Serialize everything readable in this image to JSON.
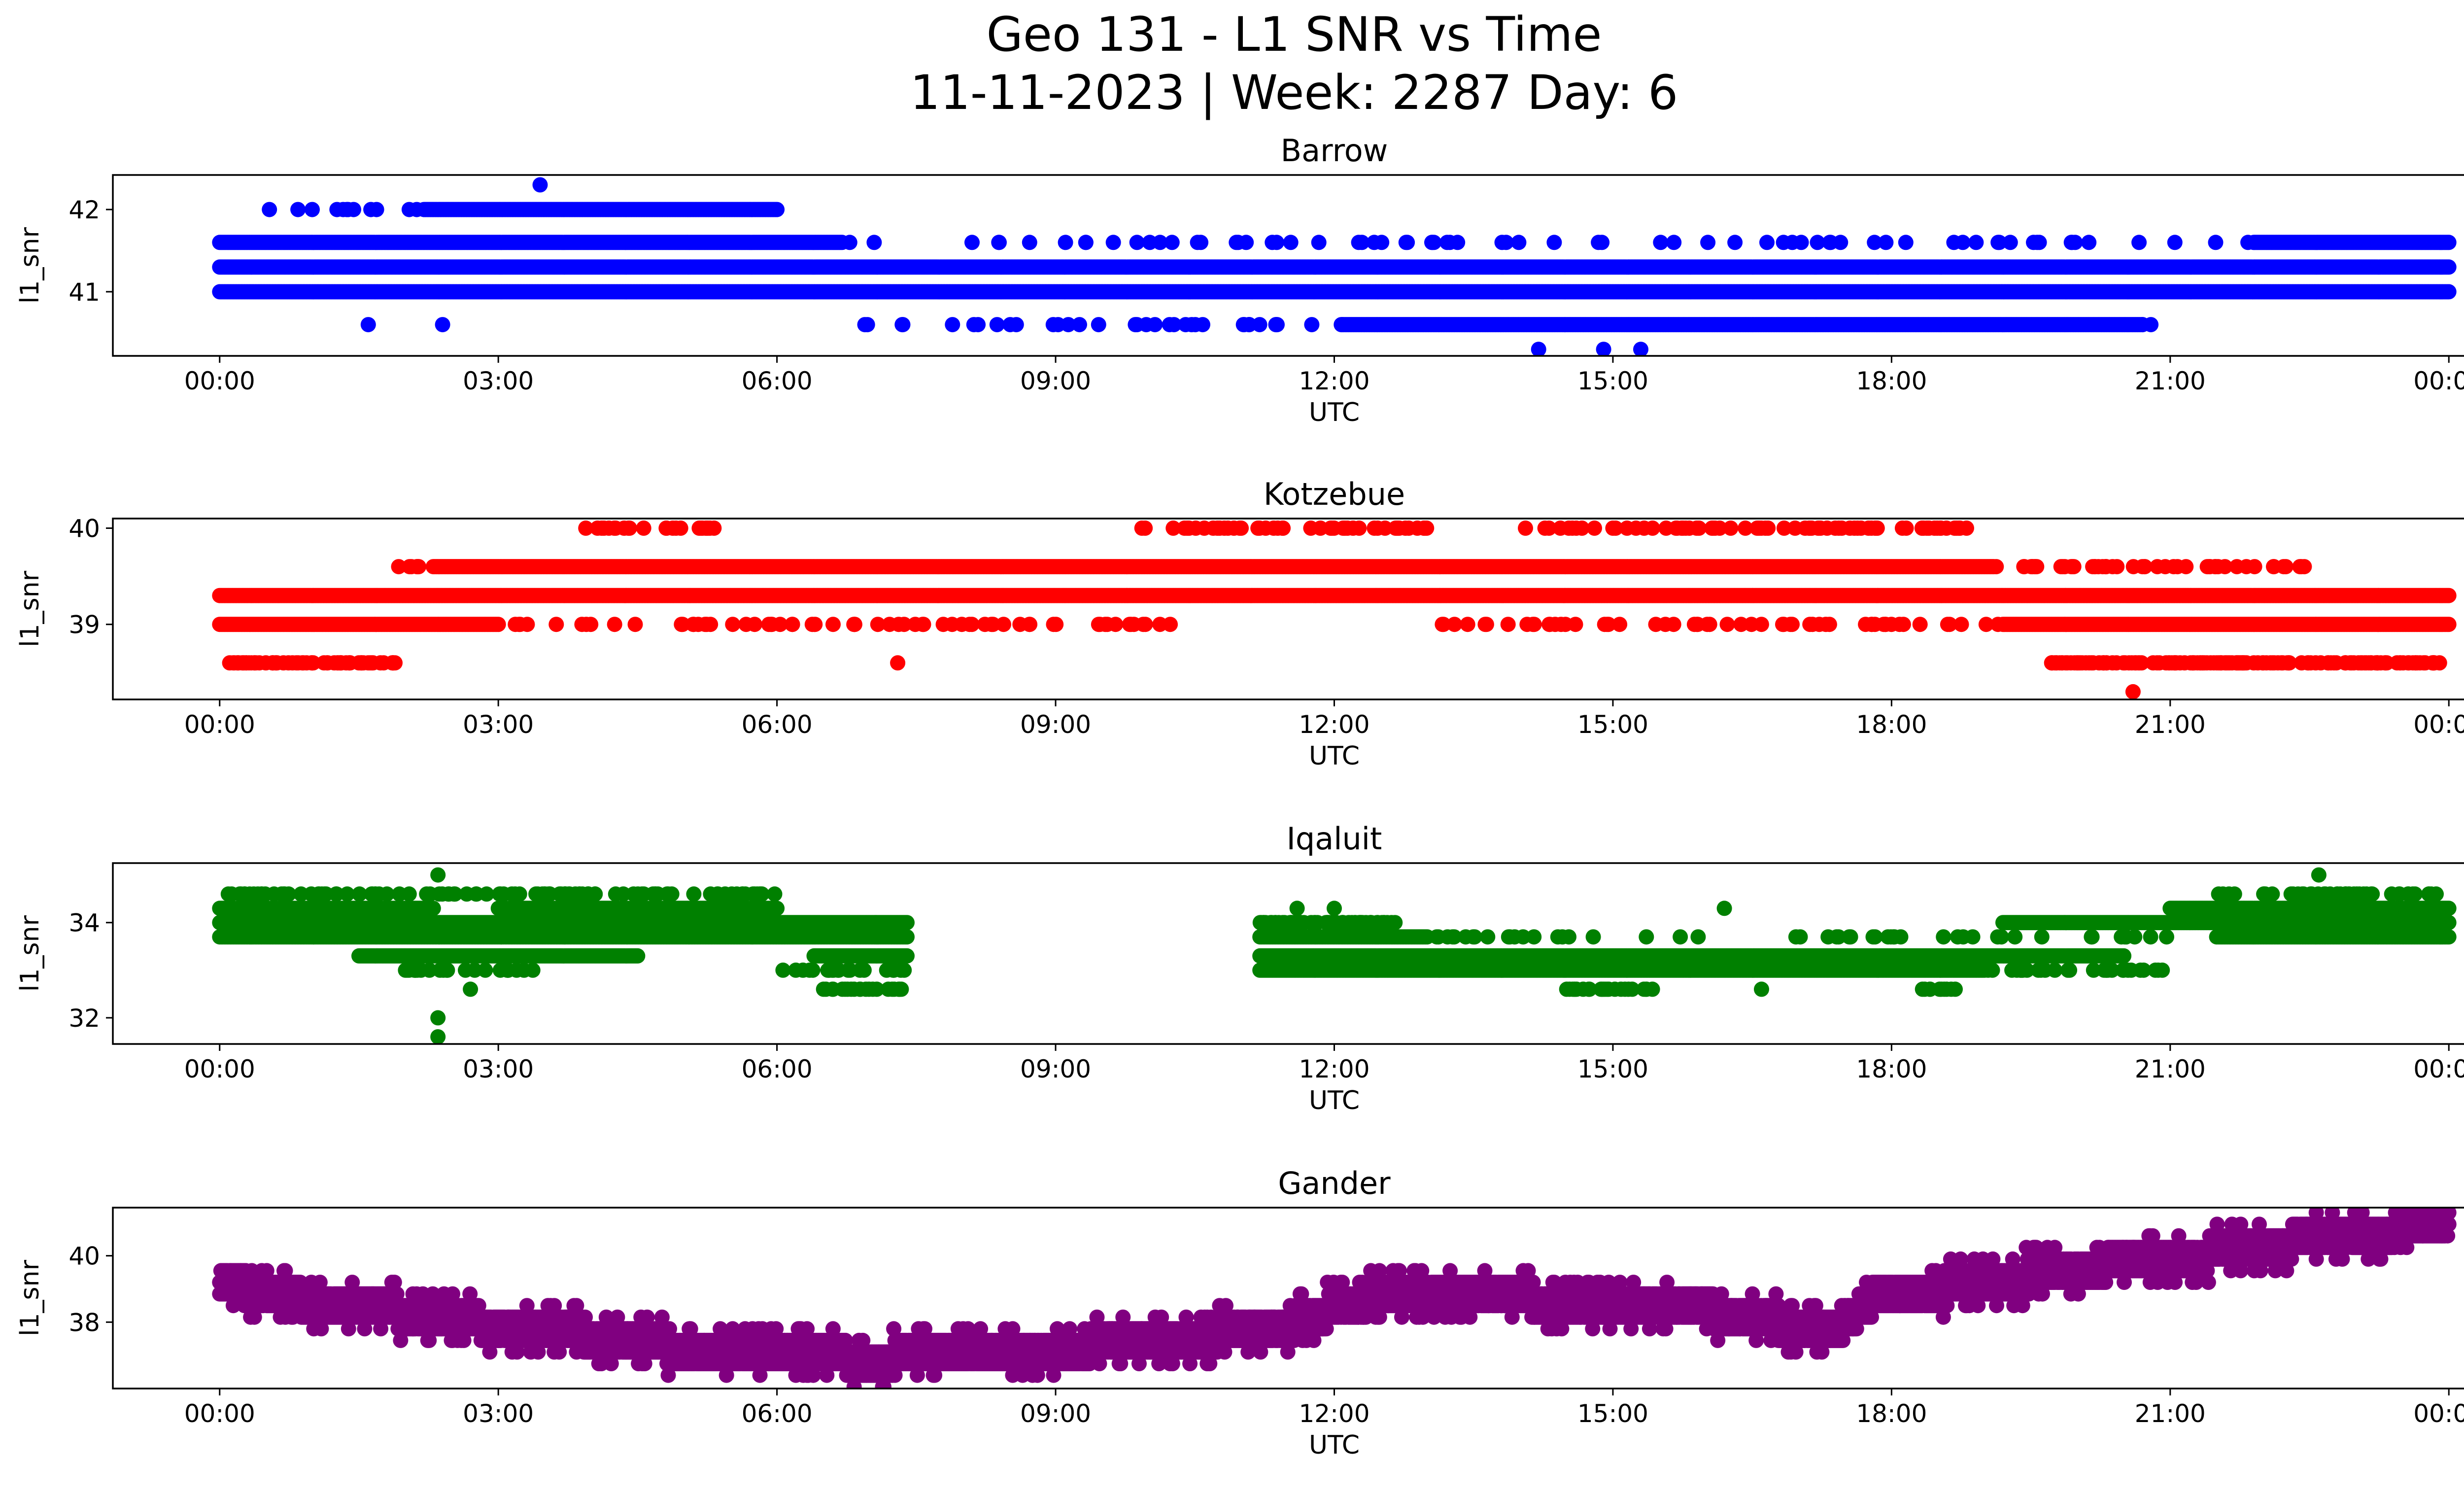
{
  "figure": {
    "title_line1": "Geo 131 - L1 SNR vs Time",
    "title_line2": "11-11-2023 | Week: 2287 Day: 6"
  },
  "chart_data": [
    {
      "type": "scatter",
      "title": "Barrow",
      "xlabel": "UTC",
      "ylabel": "l1_snr",
      "color": "#0000ff",
      "x_unit": "hours_utc",
      "xlim": [
        -1.15,
        25.15
      ],
      "ylim": [
        40.22,
        42.42
      ],
      "xticks": [
        "00:00",
        "03:00",
        "06:00",
        "09:00",
        "12:00",
        "15:00",
        "18:00",
        "21:00",
        "00:00"
      ],
      "yticks": [
        41,
        42
      ],
      "grid": false,
      "bands": [
        {
          "y": 41.0,
          "ranges": [
            [
              0.0,
              24.0
            ]
          ],
          "density": 1.0
        },
        {
          "y": 41.3,
          "ranges": [
            [
              0.0,
              24.0
            ]
          ],
          "density": 1.0
        },
        {
          "y": 41.6,
          "ranges": [
            [
              0.0,
              6.7
            ],
            [
              21.9,
              24.0
            ]
          ],
          "density": 1.0
        },
        {
          "y": 41.6,
          "ranges": [
            [
              6.7,
              21.9
            ]
          ],
          "density": 0.08
        },
        {
          "y": 42.0,
          "ranges": [
            [
              2.2,
              6.0
            ]
          ],
          "density": 0.95
        },
        {
          "y": 42.0,
          "ranges": [
            [
              0.5,
              2.2
            ]
          ],
          "density": 0.12
        },
        {
          "y": 40.6,
          "ranges": [
            [
              12.1,
              20.7
            ]
          ],
          "density": 0.95
        },
        {
          "y": 40.6,
          "ranges": [
            [
              6.9,
              12.1
            ],
            [
              20.7,
              21.0
            ]
          ],
          "density": 0.12
        },
        {
          "y": 41.0,
          "ranges": [
            [
              6.0,
              6.7
            ]
          ],
          "density": 0.0
        }
      ],
      "points": [
        [
          3.45,
          42.3
        ],
        [
          14.2,
          40.3
        ],
        [
          14.9,
          40.3
        ],
        [
          15.3,
          40.3
        ],
        [
          1.6,
          40.6
        ],
        [
          2.4,
          40.6
        ]
      ]
    },
    {
      "type": "scatter",
      "title": "Kotzebue",
      "xlabel": "UTC",
      "ylabel": "l1_snr",
      "color": "#ff0000",
      "x_unit": "hours_utc",
      "xlim": [
        -1.15,
        25.15
      ],
      "ylim": [
        38.22,
        40.1
      ],
      "xticks": [
        "00:00",
        "03:00",
        "06:00",
        "09:00",
        "12:00",
        "15:00",
        "18:00",
        "21:00",
        "00:00"
      ],
      "yticks": [
        39,
        40
      ],
      "grid": false,
      "bands": [
        {
          "y": 39.3,
          "ranges": [
            [
              0.0,
              24.0
            ]
          ],
          "density": 1.0
        },
        {
          "y": 39.6,
          "ranges": [
            [
              2.3,
              19.1
            ]
          ],
          "density": 1.0
        },
        {
          "y": 39.6,
          "ranges": [
            [
              1.8,
              2.3
            ],
            [
              19.1,
              22.5
            ]
          ],
          "density": 0.25
        },
        {
          "y": 39.0,
          "ranges": [
            [
              0.0,
              3.0
            ],
            [
              19.2,
              24.0
            ]
          ],
          "density": 1.0
        },
        {
          "y": 39.0,
          "ranges": [
            [
              3.0,
              10.3
            ],
            [
              12.9,
              19.2
            ]
          ],
          "density": 0.15
        },
        {
          "y": 38.6,
          "ranges": [
            [
              0.1,
              1.9
            ],
            [
              19.7,
              24.0
            ]
          ],
          "density": 0.6
        },
        {
          "y": 40.0,
          "ranges": [
            [
              3.9,
              5.5
            ],
            [
              9.9,
              13.0
            ],
            [
              14.0,
              18.9
            ]
          ],
          "density": 0.25
        }
      ],
      "points": [
        [
          7.3,
          38.6
        ],
        [
          20.6,
          38.3
        ]
      ]
    },
    {
      "type": "scatter",
      "title": "Iqaluit",
      "xlabel": "UTC",
      "ylabel": "l1_snr",
      "color": "#008000",
      "x_unit": "hours_utc",
      "xlim": [
        -1.15,
        25.15
      ],
      "ylim": [
        31.45,
        35.25
      ],
      "xticks": [
        "00:00",
        "03:00",
        "06:00",
        "09:00",
        "12:00",
        "15:00",
        "18:00",
        "21:00",
        "00:00"
      ],
      "yticks": [
        32,
        34
      ],
      "grid": false,
      "bands": [
        {
          "y": 34.3,
          "ranges": [
            [
              0.0,
              2.3
            ],
            [
              3.0,
              6.0
            ],
            [
              21.0,
              24.0
            ]
          ],
          "density": 1.0
        },
        {
          "y": 34.0,
          "ranges": [
            [
              0.0,
              7.4
            ],
            [
              19.2,
              24.0
            ]
          ],
          "density": 1.0
        },
        {
          "y": 34.0,
          "ranges": [
            [
              11.2,
              12.7
            ]
          ],
          "density": 0.7
        },
        {
          "y": 33.7,
          "ranges": [
            [
              0.0,
              7.4
            ],
            [
              11.2,
              13.0
            ],
            [
              21.5,
              24.0
            ]
          ],
          "density": 1.0
        },
        {
          "y": 33.7,
          "ranges": [
            [
              13.0,
              21.5
            ]
          ],
          "density": 0.1
        },
        {
          "y": 33.3,
          "ranges": [
            [
              1.5,
              4.5
            ],
            [
              6.4,
              7.4
            ],
            [
              11.2,
              20.5
            ]
          ],
          "density": 1.0
        },
        {
          "y": 33.0,
          "ranges": [
            [
              11.2,
              19.0
            ]
          ],
          "density": 1.0
        },
        {
          "y": 33.0,
          "ranges": [
            [
              2.0,
              3.5
            ],
            [
              6.0,
              7.4
            ],
            [
              19.0,
              21.0
            ]
          ],
          "density": 0.25
        },
        {
          "y": 34.6,
          "ranges": [
            [
              0.0,
              6.0
            ],
            [
              21.5,
              24.0
            ]
          ],
          "density": 0.3
        },
        {
          "y": 32.6,
          "ranges": [
            [
              6.5,
              7.4
            ],
            [
              14.5,
              15.5
            ],
            [
              18.3,
              18.7
            ]
          ],
          "density": 0.4
        }
      ],
      "points": [
        [
          2.35,
          35.0
        ],
        [
          22.6,
          35.0
        ],
        [
          2.35,
          32.0
        ],
        [
          2.35,
          31.6
        ],
        [
          2.7,
          32.6
        ],
        [
          16.2,
          34.3
        ],
        [
          11.6,
          34.3
        ],
        [
          12.0,
          34.3
        ],
        [
          16.6,
          32.6
        ]
      ]
    },
    {
      "type": "scatter",
      "title": "Gander",
      "xlabel": "UTC",
      "ylabel": "l1_snr",
      "color": "#800080",
      "x_unit": "hours_utc",
      "xlim": [
        -1.15,
        25.15
      ],
      "ylim": [
        36.0,
        41.45
      ],
      "xticks": [
        "00:00",
        "03:00",
        "06:00",
        "09:00",
        "12:00",
        "15:00",
        "18:00",
        "21:00",
        "00:00"
      ],
      "yticks": [
        38,
        40
      ],
      "grid": false,
      "trend": [
        [
          0.0,
          39.2
        ],
        [
          1.0,
          38.6
        ],
        [
          2.0,
          38.3
        ],
        [
          3.0,
          37.9
        ],
        [
          4.0,
          37.6
        ],
        [
          5.0,
          37.2
        ],
        [
          6.0,
          37.0
        ],
        [
          7.0,
          36.9
        ],
        [
          8.0,
          37.0
        ],
        [
          9.0,
          37.2
        ],
        [
          10.0,
          37.4
        ],
        [
          11.0,
          37.7
        ],
        [
          11.5,
          37.9
        ],
        [
          12.0,
          38.4
        ],
        [
          12.5,
          38.8
        ],
        [
          13.5,
          38.8
        ],
        [
          14.5,
          38.6
        ],
        [
          15.5,
          38.5
        ],
        [
          16.5,
          38.2
        ],
        [
          17.0,
          37.8
        ],
        [
          17.4,
          37.8
        ],
        [
          17.8,
          38.7
        ],
        [
          18.5,
          39.0
        ],
        [
          19.5,
          39.4
        ],
        [
          20.5,
          39.8
        ],
        [
          21.5,
          40.1
        ],
        [
          22.5,
          40.5
        ],
        [
          23.5,
          40.8
        ],
        [
          24.0,
          40.9
        ]
      ],
      "step": 0.35,
      "spread": 2
    }
  ]
}
